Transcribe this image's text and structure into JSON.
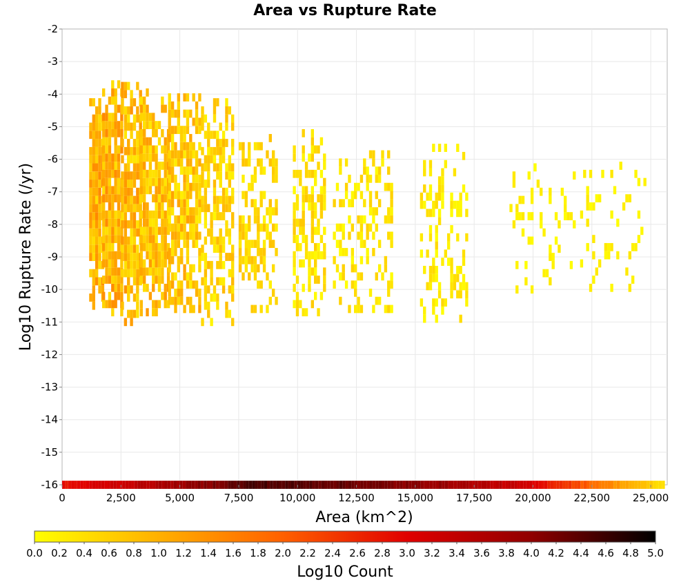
{
  "chart_data": {
    "type": "heatmap",
    "title": "Area vs Rupture Rate",
    "xlabel": "Area (km^2)",
    "ylabel": "Log10 Rupture Rate (/yr)",
    "xlim": [
      0,
      25700
    ],
    "ylim": [
      -16,
      -2
    ],
    "x_ticks": [
      "0",
      "2,500",
      "5,000",
      "7,500",
      "10,000",
      "12,500",
      "15,000",
      "17,500",
      "20,000",
      "22,500",
      "25,000"
    ],
    "x_tick_values": [
      0,
      2500,
      5000,
      7500,
      10000,
      12500,
      15000,
      17500,
      20000,
      22500,
      25000
    ],
    "y_ticks": [
      "-2",
      "-3",
      "-4",
      "-5",
      "-6",
      "-7",
      "-8",
      "-9",
      "-10",
      "-11",
      "-12",
      "-13",
      "-14",
      "-15",
      "-16"
    ],
    "y_tick_values": [
      -2,
      -3,
      -4,
      -5,
      -6,
      -7,
      -8,
      -9,
      -10,
      -11,
      -12,
      -13,
      -14,
      -15,
      -16
    ],
    "grid": true,
    "bin_width": 128,
    "bin_height": 0.25,
    "clusters": [
      {
        "x_range": [
          1150,
          1700
        ],
        "y_range": [
          -10.5,
          -3.6
        ],
        "density": 0.95,
        "value_range": [
          0.4,
          1.5
        ]
      },
      {
        "x_range": [
          1700,
          2500
        ],
        "y_range": [
          -10.7,
          -3.6
        ],
        "density": 0.92,
        "value_range": [
          0.4,
          1.5
        ]
      },
      {
        "x_range": [
          2500,
          3300
        ],
        "y_range": [
          -11.0,
          -3.7
        ],
        "density": 0.88,
        "value_range": [
          0.3,
          1.4
        ]
      },
      {
        "x_range": [
          3300,
          4500
        ],
        "y_range": [
          -10.7,
          -3.8
        ],
        "density": 0.85,
        "value_range": [
          0.3,
          1.3
        ]
      },
      {
        "x_range": [
          4500,
          5900
        ],
        "y_range": [
          -10.6,
          -4.0
        ],
        "density": 0.78,
        "value_range": [
          0.2,
          1.2
        ]
      },
      {
        "x_range": [
          5900,
          7200
        ],
        "y_range": [
          -11.0,
          -4.1
        ],
        "density": 0.6,
        "value_range": [
          0.1,
          0.9
        ]
      },
      {
        "x_range": [
          7500,
          9100
        ],
        "y_range": [
          -10.6,
          -5.2
        ],
        "density": 0.55,
        "value_range": [
          0.1,
          0.8
        ]
      },
      {
        "x_range": [
          9800,
          11200
        ],
        "y_range": [
          -10.7,
          -5.1
        ],
        "density": 0.5,
        "value_range": [
          0.0,
          0.7
        ]
      },
      {
        "x_range": [
          11500,
          14000
        ],
        "y_range": [
          -10.6,
          -5.7
        ],
        "density": 0.38,
        "value_range": [
          0.0,
          0.6
        ]
      },
      {
        "x_range": [
          15200,
          17200
        ],
        "y_range": [
          -10.9,
          -5.5
        ],
        "density": 0.32,
        "value_range": [
          0.0,
          0.5
        ]
      },
      {
        "x_range": [
          19000,
          21800
        ],
        "y_range": [
          -10.0,
          -6.2
        ],
        "density": 0.16,
        "value_range": [
          0.0,
          0.3
        ]
      },
      {
        "x_range": [
          22000,
          24700
        ],
        "y_range": [
          -10.2,
          -6.0
        ],
        "density": 0.12,
        "value_range": [
          0.0,
          0.3
        ]
      }
    ],
    "bottom_row": {
      "y": -16,
      "x_range": [
        0,
        25600
      ],
      "value_profile": [
        {
          "x": 0,
          "value": 2.8
        },
        {
          "x": 3000,
          "value": 3.4
        },
        {
          "x": 8000,
          "value": 4.5
        },
        {
          "x": 12000,
          "value": 4.3
        },
        {
          "x": 16000,
          "value": 3.9
        },
        {
          "x": 19500,
          "value": 3.2
        },
        {
          "x": 21500,
          "value": 2.4
        },
        {
          "x": 23000,
          "value": 1.6
        },
        {
          "x": 24500,
          "value": 0.8
        },
        {
          "x": 25600,
          "value": 0.3
        }
      ]
    },
    "colorbar": {
      "label": "Log10 Count",
      "range": [
        0.0,
        5.0
      ],
      "tick_labels": [
        "0.0",
        "0.2",
        "0.4",
        "0.6",
        "0.8",
        "1.0",
        "1.2",
        "1.4",
        "1.6",
        "1.8",
        "2.0",
        "2.2",
        "2.4",
        "2.6",
        "2.8",
        "3.0",
        "3.2",
        "3.4",
        "3.6",
        "3.8",
        "4.0",
        "4.2",
        "4.4",
        "4.6",
        "4.8",
        "5.0"
      ],
      "colors": [
        "#ffff00",
        "#ffb000",
        "#ff6000",
        "#e00000",
        "#900000",
        "#000000"
      ],
      "placement": "bottom"
    }
  }
}
